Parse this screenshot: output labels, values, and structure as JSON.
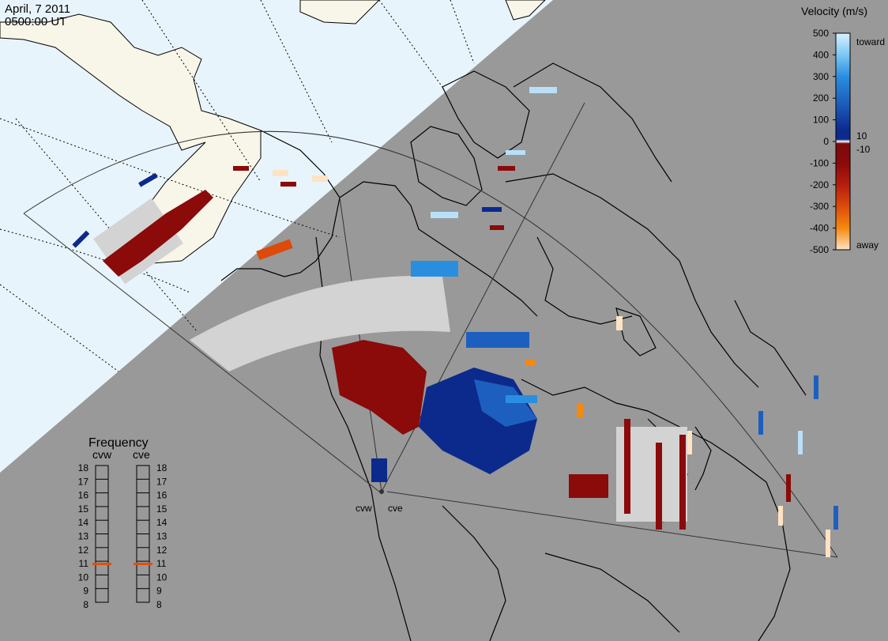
{
  "header": {
    "date": "April, 7 2011",
    "time": "0500:00 UT"
  },
  "colors": {
    "night_bg": "#999999",
    "day_ocean": "#e8f4fb",
    "day_land": "#f8f6e8",
    "scatter_gray": "#d3d3d3"
  },
  "radars": {
    "cvw": "cvw",
    "cve": "cve"
  },
  "velocity_scale": {
    "title": "Velocity (m/s)",
    "toward_label": "toward",
    "away_label": "away",
    "ticks": [
      "500",
      "400",
      "300",
      "200",
      "100",
      "0",
      "-100",
      "-200",
      "-300",
      "-400",
      "-500"
    ],
    "inner_labels": [
      "10",
      "-10"
    ],
    "gradient": [
      "#d9f0ff",
      "#7cc8f5",
      "#2a8ee0",
      "#1d5fbf",
      "#0b2a8c",
      "#ffffff",
      "#7a0a0a",
      "#b41e0e",
      "#dc4b0a",
      "#f5890f",
      "#fde3c4"
    ]
  },
  "frequency_panel": {
    "title": "Frequency",
    "col_cvw": "cvw",
    "col_cve": "cve",
    "levels": [
      "18",
      "17",
      "16",
      "15",
      "14",
      "13",
      "12",
      "11",
      "10",
      "9",
      "8"
    ],
    "cvw_mhz": 10.8,
    "cve_mhz": 10.8,
    "marker_color": "#e05010"
  }
}
